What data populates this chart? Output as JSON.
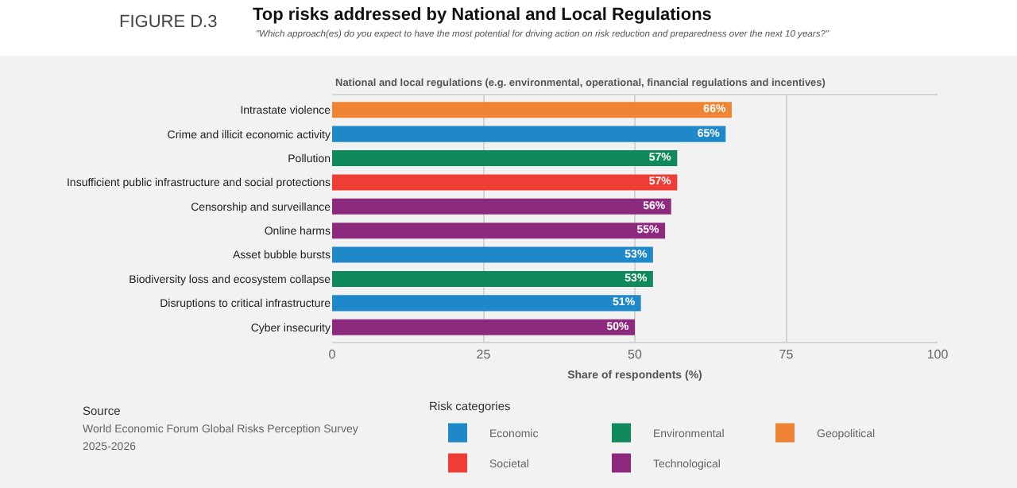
{
  "chart_data": {
    "type": "bar",
    "orientation": "horizontal",
    "title": "Top risks addressed by National and Local Regulations",
    "subtitle": "\"Which approach(es) do you expect to have the most potential for driving action on risk reduction and preparedness over the next 10 years?\"",
    "xlabel": "Share of respondents (%)",
    "legend_title": "Risk categories",
    "annotations": [
      "FIGURE D.3",
      "National and local regulations (e.g. environmental, operational, financial regulations and incentives)",
      "Source",
      "World Economic Forum Global Risks Perception Survey",
      "2025-2026"
    ],
    "categories": [
      "Intrastate violence",
      "Crime and illicit economic activity",
      "Pollution",
      "Insufficient public infrastructure and social protections",
      "Censorship and surveillance",
      "Online harms",
      "Asset bubble bursts",
      "Biodiversity loss and ecosystem collapse",
      "Disruptions to critical infrastructure",
      "Cyber insecurity"
    ],
    "series": [
      {
        "name": "Economic",
        "color": "#1e88c8",
        "values": [
          null,
          65,
          null,
          null,
          null,
          null,
          53,
          null,
          51,
          null
        ],
        "value_labels": [
          null,
          "65%",
          null,
          null,
          null,
          null,
          "53%",
          null,
          "51%",
          null
        ]
      },
      {
        "name": "Environmental",
        "color": "#108a5a",
        "values": [
          null,
          null,
          57,
          null,
          null,
          null,
          null,
          53,
          null,
          null
        ],
        "value_labels": [
          null,
          null,
          "57%",
          null,
          null,
          null,
          null,
          "53%",
          null,
          null
        ]
      },
      {
        "name": "Geopolitical",
        "color": "#ee8434",
        "values": [
          66,
          null,
          null,
          null,
          null,
          null,
          null,
          null,
          null,
          null
        ],
        "value_labels": [
          "66%",
          null,
          null,
          null,
          null,
          null,
          null,
          null,
          null,
          null
        ]
      },
      {
        "name": "Societal",
        "color": "#ee3d34",
        "values": [
          null,
          null,
          null,
          57,
          null,
          null,
          null,
          null,
          null,
          null
        ],
        "value_labels": [
          null,
          null,
          null,
          "57%",
          null,
          null,
          null,
          null,
          null,
          null
        ]
      },
      {
        "name": "Technological",
        "color": "#8e2a7e",
        "values": [
          null,
          null,
          null,
          null,
          56,
          55,
          null,
          null,
          null,
          50
        ],
        "value_labels": [
          null,
          null,
          null,
          null,
          "56%",
          "55%",
          null,
          null,
          null,
          "50%"
        ]
      }
    ],
    "xlim": [
      0,
      100
    ],
    "xticks": [
      0,
      25,
      50,
      75,
      100
    ],
    "grid": "x",
    "legend": "bottom"
  }
}
